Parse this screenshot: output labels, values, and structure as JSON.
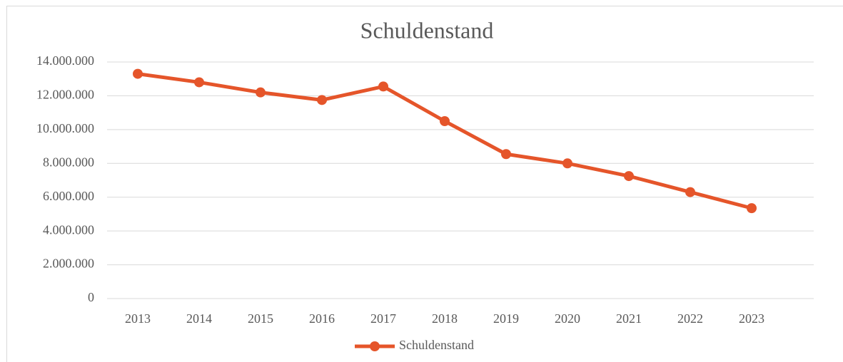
{
  "chart_data": {
    "type": "line",
    "title": "Schuldenstand",
    "categories": [
      "2013",
      "2014",
      "2015",
      "2016",
      "2017",
      "2018",
      "2019",
      "2020",
      "2021",
      "2022",
      "2023"
    ],
    "series": [
      {
        "name": "Schuldenstand",
        "color": "#e5552a",
        "values": [
          13300000,
          12800000,
          12200000,
          11750000,
          12550000,
          10500000,
          8550000,
          8000000,
          7250000,
          6300000,
          5350000
        ]
      }
    ],
    "ylim": [
      0,
      14000000
    ],
    "yticks": [
      0,
      {
        "value": 2000000,
        "label": "2.000.000"
      },
      {
        "value": 4000000,
        "label": "4.000.000"
      },
      {
        "value": 6000000,
        "label": "6.000.000"
      },
      {
        "value": 8000000,
        "label": "8.000.000"
      },
      {
        "value": 10000000,
        "label": "10.000.000"
      },
      {
        "value": 12000000,
        "label": "12.000.000"
      },
      {
        "value": 14000000,
        "label": "14.000.000"
      }
    ],
    "grid": true,
    "legend": "bottom"
  }
}
